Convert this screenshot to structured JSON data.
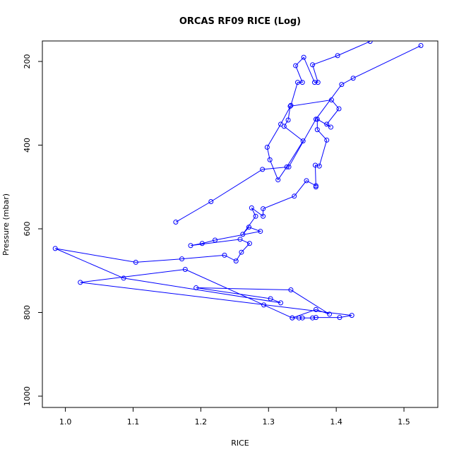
{
  "chart_data": {
    "type": "line",
    "title": "ORCAS RF09 RICE (Log)",
    "x_label": "RICE",
    "y_label": "Pressure (mbar)",
    "color": "#0000ff",
    "y_reversed": true,
    "xlim": [
      0.966,
      1.55
    ],
    "ylim": [
      151,
      1027
    ],
    "xticks": [
      {
        "value": 1.0,
        "label": "1.0"
      },
      1.1,
      1.2,
      1.3,
      1.4,
      1.5
    ],
    "yticks": [
      200,
      400,
      600,
      800,
      1000
    ],
    "x": [
      1.335,
      1.345,
      1.35,
      1.365,
      1.37,
      1.405,
      1.423,
      1.022,
      1.177,
      1.293,
      1.335,
      1.37,
      1.39,
      1.333,
      1.193,
      1.303,
      1.318,
      1.086,
      0.985,
      1.104,
      1.172,
      1.235,
      1.252,
      1.26,
      1.272,
      1.258,
      1.185,
      1.202,
      1.221,
      1.288,
      1.271,
      1.262,
      1.281,
      1.275,
      1.292,
      1.292,
      1.338,
      1.356,
      1.37,
      1.37,
      1.369,
      1.375,
      1.386,
      1.372,
      1.372,
      1.392,
      1.386,
      1.404,
      1.393,
      1.332,
      1.329,
      1.323,
      1.351,
      1.327,
      1.314,
      1.302,
      1.298,
      1.318,
      1.333,
      1.343,
      1.35,
      1.34,
      1.352,
      1.368,
      1.373,
      1.365,
      1.402,
      1.45,
      null,
      1.163,
      1.215,
      1.291,
      1.33,
      1.37,
      1.408,
      1.425,
      1.525
    ],
    "y": [
      813,
      813,
      813,
      813,
      812,
      812,
      807,
      728,
      697,
      782,
      813,
      793,
      804,
      746,
      741,
      767,
      777,
      718,
      647,
      680,
      672,
      663,
      677,
      656,
      635,
      625,
      640,
      635,
      627,
      606,
      596,
      613,
      570,
      550,
      570,
      552,
      522,
      485,
      497,
      500,
      448,
      450,
      388,
      363,
      338,
      357,
      350,
      313,
      292,
      307,
      340,
      355,
      390,
      452,
      483,
      435,
      405,
      350,
      305,
      250,
      250,
      210,
      190,
      250,
      250,
      208,
      186,
      152,
      null,
      584,
      535,
      458,
      452,
      338,
      255,
      240,
      162
    ]
  }
}
